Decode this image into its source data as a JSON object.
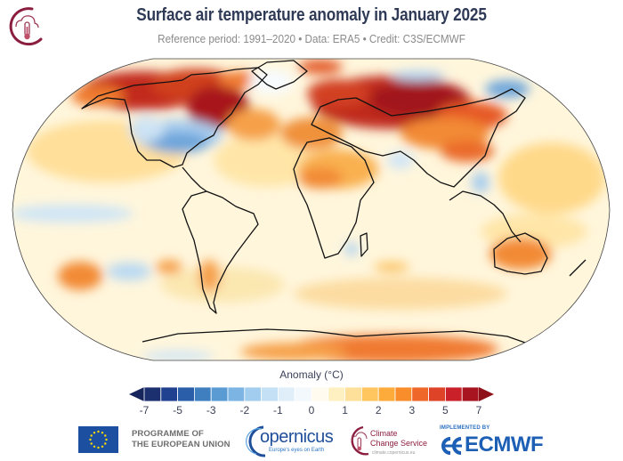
{
  "header": {
    "title": "Surface air temperature anomaly in January 2025",
    "subtitle": "Reference period: 1991–2020 • Data: ERA5 • Credit: C3S/ECMWF"
  },
  "colors": {
    "title": "#2f3a57",
    "subtitle": "#8a8a8a",
    "brand_c3s": "#8b1e3f",
    "ocean_neutral": "#fff8e6"
  },
  "map": {
    "projection": "Robinson",
    "variable": "Surface air temperature anomaly",
    "regions": [
      {
        "name": "Alaska / NW Canada",
        "anomaly": "strong warm"
      },
      {
        "name": "Eastern Canada / Hudson Bay",
        "anomaly": "strong warm"
      },
      {
        "name": "Central & Eastern USA",
        "anomaly": "cold"
      },
      {
        "name": "Greenland",
        "anomaly": "near normal / slightly cold"
      },
      {
        "name": "Europe & Western Russia",
        "anomaly": "strong warm"
      },
      {
        "name": "Siberia",
        "anomaly": "strong warm"
      },
      {
        "name": "Eastern Siberia",
        "anomaly": "cold"
      },
      {
        "name": "Northern Africa / Arabia",
        "anomaly": "warm"
      },
      {
        "name": "Australia",
        "anomaly": "warm"
      },
      {
        "name": "Antarctica",
        "anomaly": "warm"
      },
      {
        "name": "South Pacific",
        "anomaly": "mixed warm/cold"
      }
    ]
  },
  "colorbar": {
    "label": "Anomaly (°C)",
    "ticks": [
      "-7",
      "-5",
      "-3",
      "-2",
      "-1",
      "0",
      "1",
      "2",
      "3",
      "5",
      "7"
    ],
    "colors": [
      "#1c2f6e",
      "#20418f",
      "#2b5ea8",
      "#3f7fc0",
      "#5b9bd4",
      "#7cb5e3",
      "#a2cdee",
      "#c4e0f4",
      "#e0eefa",
      "#f3f8fd",
      "#fffbee",
      "#fff0c2",
      "#ffe09a",
      "#ffc660",
      "#fdab3a",
      "#f98d2b",
      "#f0672a",
      "#df4327",
      "#c9202a",
      "#a8141f"
    ],
    "under_color": "#16265c",
    "over_color": "#8e1019"
  },
  "footer": {
    "eu_text_line1": "PROGRAMME OF",
    "eu_text_line2": "THE EUROPEAN UNION",
    "copernicus_word": "opernicus",
    "copernicus_tagline": "Europe's eyes on Earth",
    "c3s_line1": "Climate",
    "c3s_line2": "Change Service",
    "c3s_url": "climate.copernicus.eu",
    "implemented_by": "IMPLEMENTED BY",
    "ecmwf": "ECMWF"
  }
}
